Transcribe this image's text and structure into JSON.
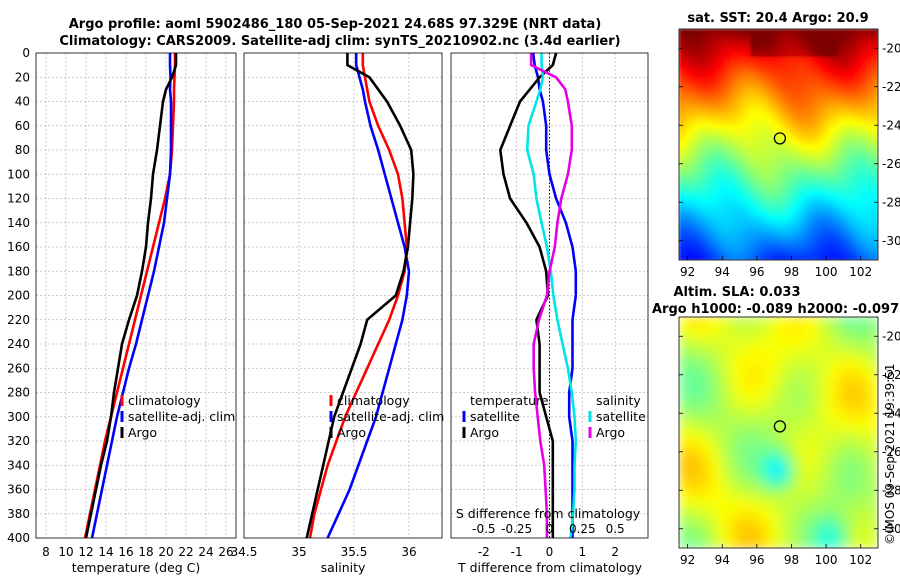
{
  "titles": {
    "line1": "Argo profile: aoml 5902486_180 05-Sep-2021 24.68S 97.329E (NRT data)",
    "line2": "Climatology: CARS2009. Satellite-adj clim: synTS_20210902.nc (3.4d earlier)"
  },
  "colors": {
    "climatology": "#ff0000",
    "satellite": "#0000ff",
    "argo": "#000000",
    "salinity_satellite": "#00e5e5",
    "salinity_argo": "#e600e6"
  },
  "depth_axis": {
    "ylim": [
      0,
      400
    ],
    "ticks": [
      "0",
      "20",
      "40",
      "60",
      "80",
      "100",
      "120",
      "140",
      "160",
      "180",
      "200",
      "220",
      "240",
      "260",
      "280",
      "300",
      "320",
      "340",
      "360",
      "380",
      "400"
    ]
  },
  "chart_data": [
    {
      "type": "line",
      "xlabel": "temperature (deg C)",
      "xlim": [
        7,
        27
      ],
      "xticks": [
        "8",
        "10",
        "12",
        "14",
        "16",
        "18",
        "20",
        "22",
        "24",
        "26"
      ],
      "depth": [
        0,
        10,
        20,
        30,
        40,
        60,
        80,
        100,
        120,
        140,
        160,
        180,
        200,
        220,
        240,
        260,
        280,
        300,
        320,
        340,
        360,
        380,
        400
      ],
      "series": [
        {
          "name": "climatology",
          "color": "#ff0000",
          "values": [
            20.9,
            20.9,
            20.85,
            20.8,
            20.8,
            20.7,
            20.6,
            20.4,
            19.9,
            19.3,
            18.7,
            18.1,
            17.5,
            16.9,
            16.3,
            15.7,
            15.1,
            14.5,
            13.9,
            13.4,
            12.9,
            12.4,
            11.9
          ]
        },
        {
          "name": "satellite-adj. clim",
          "color": "#0000ff",
          "values": [
            20.4,
            20.4,
            20.45,
            20.4,
            20.5,
            20.5,
            20.5,
            20.4,
            20.1,
            19.8,
            19.3,
            18.8,
            18.2,
            17.6,
            17.0,
            16.3,
            15.7,
            15.1,
            14.6,
            14.1,
            13.6,
            13.1,
            12.6
          ]
        },
        {
          "name": "Argo",
          "color": "#000000",
          "values": [
            21.0,
            21.0,
            20.6,
            20.0,
            19.7,
            19.4,
            19.1,
            18.7,
            18.5,
            18.2,
            18.0,
            17.6,
            17.1,
            16.3,
            15.6,
            15.2,
            14.8,
            14.5,
            14.1,
            13.5,
            13.0,
            12.5,
            12.0
          ]
        }
      ],
      "legend": [
        "climatology",
        "satellite-adj. clim",
        "Argo"
      ]
    },
    {
      "type": "line",
      "xlabel": "salinity",
      "xlim": [
        34.5,
        36.3
      ],
      "xticks": [
        "34.5",
        "35",
        "35.5",
        "36"
      ],
      "depth": [
        0,
        10,
        20,
        30,
        40,
        60,
        80,
        100,
        120,
        140,
        160,
        180,
        200,
        220,
        240,
        260,
        280,
        300,
        320,
        340,
        360,
        380,
        400
      ],
      "series": [
        {
          "name": "climatology",
          "color": "#ff0000",
          "values": [
            35.58,
            35.58,
            35.6,
            35.62,
            35.64,
            35.72,
            35.82,
            35.9,
            35.94,
            35.96,
            35.98,
            35.96,
            35.9,
            35.82,
            35.72,
            35.62,
            35.52,
            35.42,
            35.34,
            35.26,
            35.2,
            35.14,
            35.1
          ]
        },
        {
          "name": "satellite-adj. clim",
          "color": "#0000ff",
          "values": [
            35.52,
            35.52,
            35.55,
            35.58,
            35.6,
            35.65,
            35.72,
            35.78,
            35.84,
            35.9,
            35.96,
            36.0,
            35.98,
            35.94,
            35.88,
            35.82,
            35.76,
            35.7,
            35.62,
            35.54,
            35.46,
            35.36,
            35.26
          ]
        },
        {
          "name": "Argo",
          "color": "#000000",
          "values": [
            35.44,
            35.44,
            35.64,
            35.72,
            35.8,
            35.92,
            36.02,
            36.04,
            36.03,
            36.01,
            35.99,
            35.95,
            35.88,
            35.62,
            35.56,
            35.48,
            35.4,
            35.32,
            35.27,
            35.22,
            35.17,
            35.12,
            35.07
          ]
        }
      ],
      "legend": [
        "climatology",
        "satellite-adj. clim",
        "Argo"
      ]
    },
    {
      "type": "line",
      "xlabel": "T difference from climatology",
      "xlim": [
        -3,
        3
      ],
      "xticks": [
        "-2",
        "-1",
        "0",
        "1",
        "2"
      ],
      "top_xlabel": "S difference from climatology",
      "top_xticks": [
        "-0.5",
        "-0.25",
        "0",
        "0.25",
        "0.5"
      ],
      "depth": [
        0,
        10,
        20,
        30,
        40,
        60,
        80,
        100,
        120,
        140,
        160,
        180,
        200,
        220,
        240,
        260,
        280,
        300,
        320,
        340,
        360,
        380,
        400
      ],
      "series": [
        {
          "name": "temperature satellite",
          "color": "#0000ff",
          "values": [
            -0.5,
            -0.45,
            -0.35,
            -0.3,
            -0.2,
            -0.1,
            -0.1,
            0.0,
            0.2,
            0.5,
            0.7,
            0.8,
            0.8,
            0.7,
            0.7,
            0.7,
            0.6,
            0.6,
            0.7,
            0.7,
            0.7,
            0.7,
            0.7
          ]
        },
        {
          "name": "temperature Argo",
          "color": "#000000",
          "values": [
            0.2,
            0.1,
            -0.3,
            -0.6,
            -0.9,
            -1.2,
            -1.5,
            -1.4,
            -1.2,
            -0.7,
            -0.3,
            -0.1,
            -0.05,
            -0.4,
            -0.3,
            -0.3,
            -0.3,
            -0.1,
            0.1,
            0.1,
            0.1,
            0.1,
            0.1
          ]
        },
        {
          "name": "salinity satellite",
          "color": "#00e5e5",
          "values": [
            -0.06,
            -0.06,
            -0.05,
            -0.07,
            -0.1,
            -0.16,
            -0.17,
            -0.12,
            -0.1,
            -0.06,
            -0.02,
            0.01,
            0.03,
            0.06,
            0.1,
            0.14,
            0.17,
            0.19,
            0.2,
            0.19,
            0.19,
            0.18,
            0.16
          ]
        },
        {
          "name": "salinity Argo",
          "color": "#e600e6",
          "values": [
            -0.14,
            -0.14,
            0.05,
            0.12,
            0.14,
            0.17,
            0.17,
            0.14,
            0.09,
            0.06,
            0.04,
            0.0,
            -0.02,
            -0.08,
            -0.12,
            -0.12,
            -0.11,
            -0.09,
            -0.07,
            -0.04,
            -0.03,
            -0.02,
            -0.02
          ]
        }
      ],
      "legend_temperature": {
        "title": "temperature",
        "items": [
          "satellite",
          "Argo"
        ]
      },
      "legend_salinity": {
        "title": "salinity",
        "items": [
          "satellite",
          "Argo"
        ]
      }
    },
    {
      "type": "heatmap",
      "title": "sat. SST: 20.4 Argo: 20.9",
      "xticks": [
        "92",
        "94",
        "96",
        "98",
        "100",
        "102"
      ],
      "yticks": [
        "-20",
        "-22",
        "-24",
        "-26",
        "-28",
        "-30"
      ],
      "xlim": [
        91.5,
        103
      ],
      "ylim": [
        -31,
        -19
      ],
      "marker": {
        "lon": 97.33,
        "lat": -24.68
      }
    },
    {
      "type": "heatmap",
      "title1": "Altim. SLA: 0.033",
      "title2": "Argo h1000: -0.089 h2000: -0.097",
      "xticks": [
        "92",
        "94",
        "96",
        "98",
        "100",
        "102"
      ],
      "yticks": [
        "-20",
        "-22",
        "-24",
        "-26",
        "-28",
        "-30"
      ],
      "xlim": [
        91.5,
        103
      ],
      "ylim": [
        -31,
        -19
      ],
      "marker": {
        "lon": 97.33,
        "lat": -24.68
      }
    }
  ],
  "watermark": "©IMOS 09-Sep-2021 19:39:51"
}
